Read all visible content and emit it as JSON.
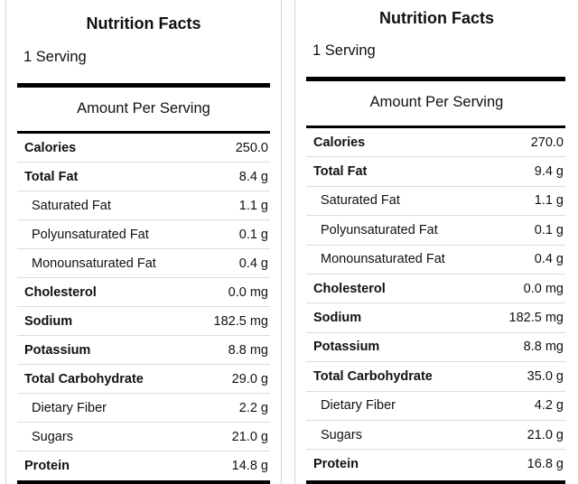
{
  "labels": [
    {
      "title": "Nutrition Facts",
      "serving": "1 Serving",
      "amount_header": "Amount Per Serving",
      "rows": [
        {
          "name": "Calories",
          "value": "250.0",
          "bold": true,
          "sub": false
        },
        {
          "name": "Total Fat",
          "value": "8.4 g",
          "bold": true,
          "sub": false
        },
        {
          "name": "Saturated Fat",
          "value": "1.1 g",
          "bold": false,
          "sub": true
        },
        {
          "name": "Polyunsaturated Fat",
          "value": "0.1 g",
          "bold": false,
          "sub": true
        },
        {
          "name": "Monounsaturated Fat",
          "value": "0.4 g",
          "bold": false,
          "sub": true
        },
        {
          "name": "Cholesterol",
          "value": "0.0 mg",
          "bold": true,
          "sub": false
        },
        {
          "name": "Sodium",
          "value": "182.5 mg",
          "bold": true,
          "sub": false
        },
        {
          "name": "Potassium",
          "value": "8.8 mg",
          "bold": true,
          "sub": false
        },
        {
          "name": "Total Carbohydrate",
          "value": "29.0 g",
          "bold": true,
          "sub": false
        },
        {
          "name": "Dietary Fiber",
          "value": "2.2 g",
          "bold": false,
          "sub": true
        },
        {
          "name": "Sugars",
          "value": "21.0 g",
          "bold": false,
          "sub": true
        },
        {
          "name": "Protein",
          "value": "14.8 g",
          "bold": true,
          "sub": false
        }
      ]
    },
    {
      "title": "Nutrition Facts",
      "serving": "1 Serving",
      "amount_header": "Amount Per Serving",
      "rows": [
        {
          "name": "Calories",
          "value": "270.0",
          "bold": true,
          "sub": false
        },
        {
          "name": "Total Fat",
          "value": "9.4 g",
          "bold": true,
          "sub": false
        },
        {
          "name": "Saturated Fat",
          "value": "1.1 g",
          "bold": false,
          "sub": true
        },
        {
          "name": "Polyunsaturated Fat",
          "value": "0.1 g",
          "bold": false,
          "sub": true
        },
        {
          "name": "Monounsaturated Fat",
          "value": "0.4 g",
          "bold": false,
          "sub": true
        },
        {
          "name": "Cholesterol",
          "value": "0.0 mg",
          "bold": true,
          "sub": false
        },
        {
          "name": "Sodium",
          "value": "182.5 mg",
          "bold": true,
          "sub": false
        },
        {
          "name": "Potassium",
          "value": "8.8 mg",
          "bold": true,
          "sub": false
        },
        {
          "name": "Total Carbohydrate",
          "value": "35.0 g",
          "bold": true,
          "sub": false
        },
        {
          "name": "Dietary Fiber",
          "value": "4.2 g",
          "bold": false,
          "sub": true
        },
        {
          "name": "Sugars",
          "value": "21.0 g",
          "bold": false,
          "sub": true
        },
        {
          "name": "Protein",
          "value": "16.8 g",
          "bold": true,
          "sub": false
        }
      ]
    }
  ]
}
